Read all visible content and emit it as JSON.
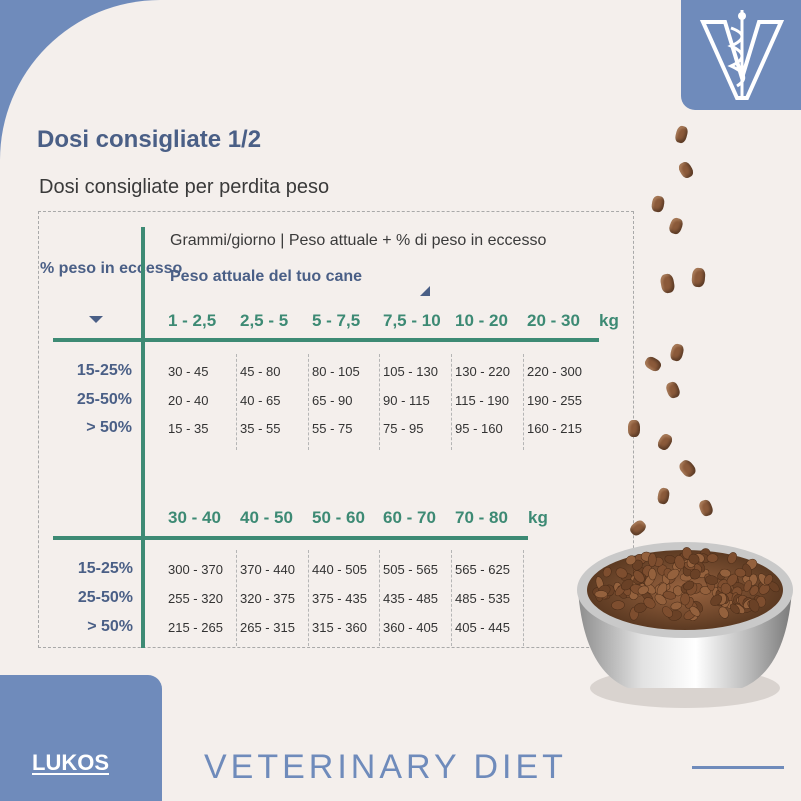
{
  "title": "Dosi consigliate 1/2",
  "subtitle": "Dosi consigliate per perdita peso",
  "table": {
    "left_header": "% peso in eccesso",
    "desc": "Grammi/giorno  | Peso attuale +  % di peso in eccesso",
    "sub": "Peso attuale del tuo cane",
    "unit": "kg",
    "row_labels": [
      "15-25%",
      "25-50%",
      "> 50%"
    ],
    "section1": {
      "weights": [
        "1 - 2,5",
        "2,5 - 5",
        "5 - 7,5",
        "7,5 - 10",
        "10 - 20",
        "20 - 30"
      ],
      "rows": [
        [
          "30 - 45",
          "45 - 80",
          "80 - 105",
          "105 - 130",
          "130 - 220",
          "220 - 300"
        ],
        [
          "20 - 40",
          "40 - 65",
          "65 - 90",
          "90 - 115",
          "115 - 190",
          "190 - 255"
        ],
        [
          "15 - 35",
          "35 - 55",
          "55 - 75",
          "75 - 95",
          "95 - 160",
          "160 - 215"
        ]
      ]
    },
    "section2": {
      "weights": [
        "30 - 40",
        "40 - 50",
        "50 - 60",
        "60 - 70",
        "70 - 80"
      ],
      "rows": [
        [
          "300 - 370",
          "370 - 440",
          "440 - 505",
          "505 - 565",
          "565 - 625"
        ],
        [
          "255 - 320",
          "320 - 375",
          "375 - 435",
          "435 - 485",
          "485 - 535"
        ],
        [
          "215 - 265",
          "265 - 315",
          "315 - 360",
          "360 - 405",
          "405 - 445"
        ]
      ]
    }
  },
  "footer": {
    "brand": "LUKOS",
    "tagline": "VETERINARY DIET"
  },
  "colors": {
    "accent_blue": "#6f8bbb",
    "heading_blue": "#4a5f86",
    "green": "#3d8a74",
    "background": "#f4efec"
  },
  "icons": {
    "logo": "veterinary-caduceus-v-icon",
    "food": "dog-food-bowl-image"
  }
}
